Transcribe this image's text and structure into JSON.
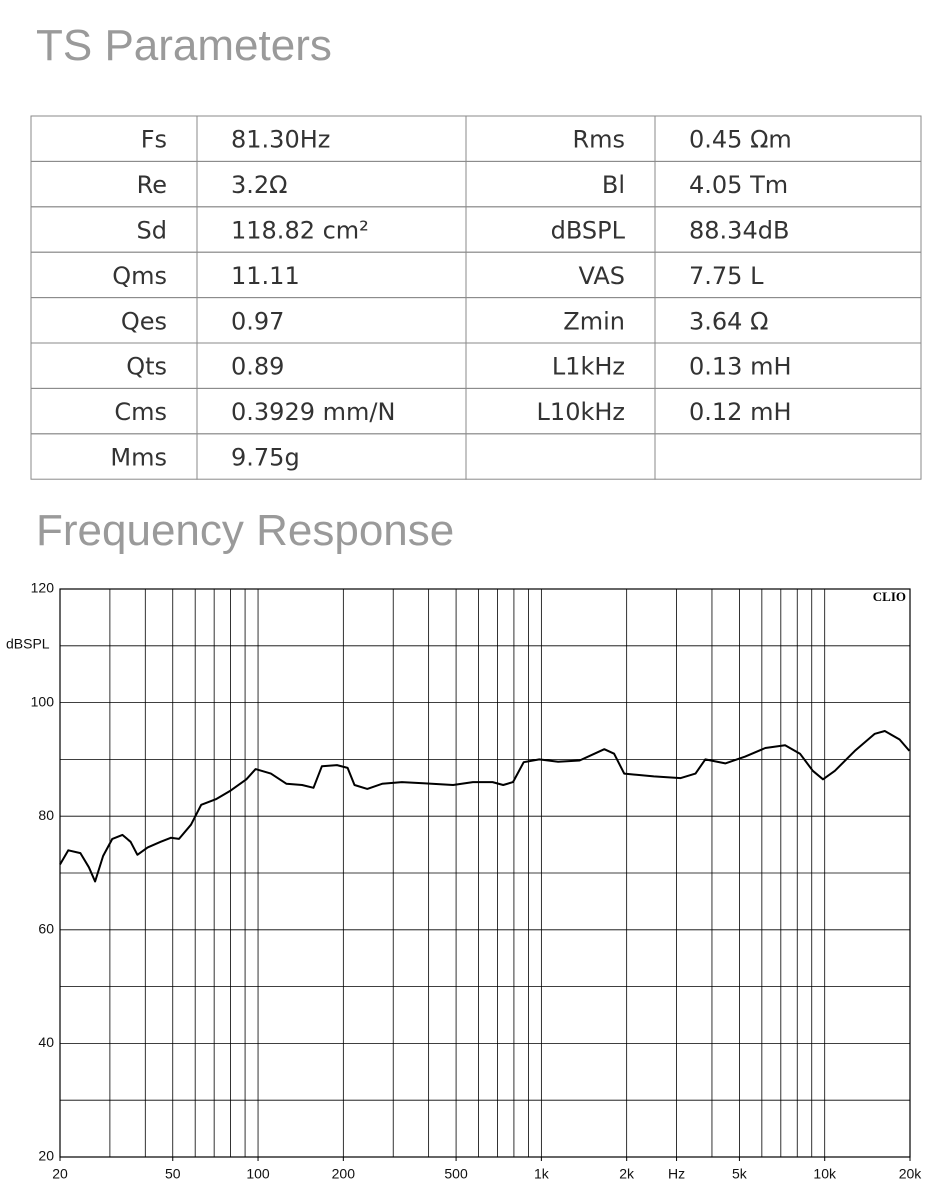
{
  "title": "TS Parameters",
  "table": {
    "rows": [
      [
        "Fs",
        "81.30Hz",
        "Rms",
        "0.45 Ωm"
      ],
      [
        "Re",
        "3.2Ω",
        "Bl",
        "4.05 Tm"
      ],
      [
        "Sd",
        "118.82 cm²",
        "dBSPL",
        "88.34dB"
      ],
      [
        "Qms",
        "11.11",
        "VAS",
        "7.75 L"
      ],
      [
        "Qes",
        "0.97",
        "Zmin",
        "3.64 Ω"
      ],
      [
        "Qts",
        "0.89",
        "L1kHz",
        "0.13 mH"
      ],
      [
        "Cms",
        "0.3929 mm/N",
        "L10kHz",
        "0.12 mH"
      ],
      [
        "Mms",
        "9.75g"
      ]
    ]
  },
  "section_title": "Frequency Response",
  "chart_data": {
    "type": "line",
    "y_label": "dBSPL",
    "watermark": "CLIO",
    "log_x": true,
    "grid": true,
    "xlim": [
      20,
      20000
    ],
    "ylim": [
      20,
      120
    ],
    "xticks": [
      20,
      50,
      100,
      200,
      500,
      {
        "value": 1000,
        "label": "1k"
      },
      {
        "value": 2000,
        "label": "2k"
      },
      {
        "value": 3000,
        "label": "Hz"
      },
      {
        "value": 5000,
        "label": "5k"
      },
      {
        "value": 10000,
        "label": "10k"
      },
      {
        "value": 20000,
        "label": "20k"
      }
    ],
    "yticks": [
      20,
      40,
      60,
      80,
      100,
      120
    ],
    "x": [
      20,
      21.4,
      23.6,
      25.3,
      26.6,
      28.4,
      30.6,
      33.2,
      35.5,
      37.5,
      40.8,
      45.3,
      49.2,
      52.6,
      58,
      63,
      71,
      80,
      91,
      98,
      111,
      126,
      143,
      157,
      168,
      190,
      207,
      219,
      243,
      274,
      322,
      383,
      488,
      573,
      673,
      733,
      794,
      866,
      983,
      1146,
      1364,
      1540,
      1667,
      1806,
      1960,
      2494,
      3103,
      3500,
      3790,
      4457,
      5240,
      6170,
      7250,
      8180,
      9080,
      9860,
      10860,
      12770,
      15020,
      16300,
      18380,
      19900
    ],
    "series": [
      {
        "color": "#000000",
        "values": [
          71.5,
          74,
          73.5,
          71,
          68.5,
          73,
          76,
          76.7,
          75.5,
          73.2,
          74.5,
          75.5,
          76.2,
          76,
          78.5,
          82,
          83,
          84.5,
          86.5,
          88.3,
          87.5,
          85.7,
          85.5,
          85,
          88.8,
          89,
          88.5,
          85.5,
          84.8,
          85.7,
          86,
          85.8,
          85.5,
          86,
          86,
          85.5,
          86,
          89.5,
          90,
          89.6,
          89.8,
          91,
          91.8,
          91,
          87.5,
          87,
          86.7,
          87.5,
          90,
          89.3,
          90.5,
          92,
          92.5,
          91,
          88,
          86.5,
          88,
          91.5,
          94.5,
          95,
          93.5,
          91.5
        ]
      }
    ]
  }
}
